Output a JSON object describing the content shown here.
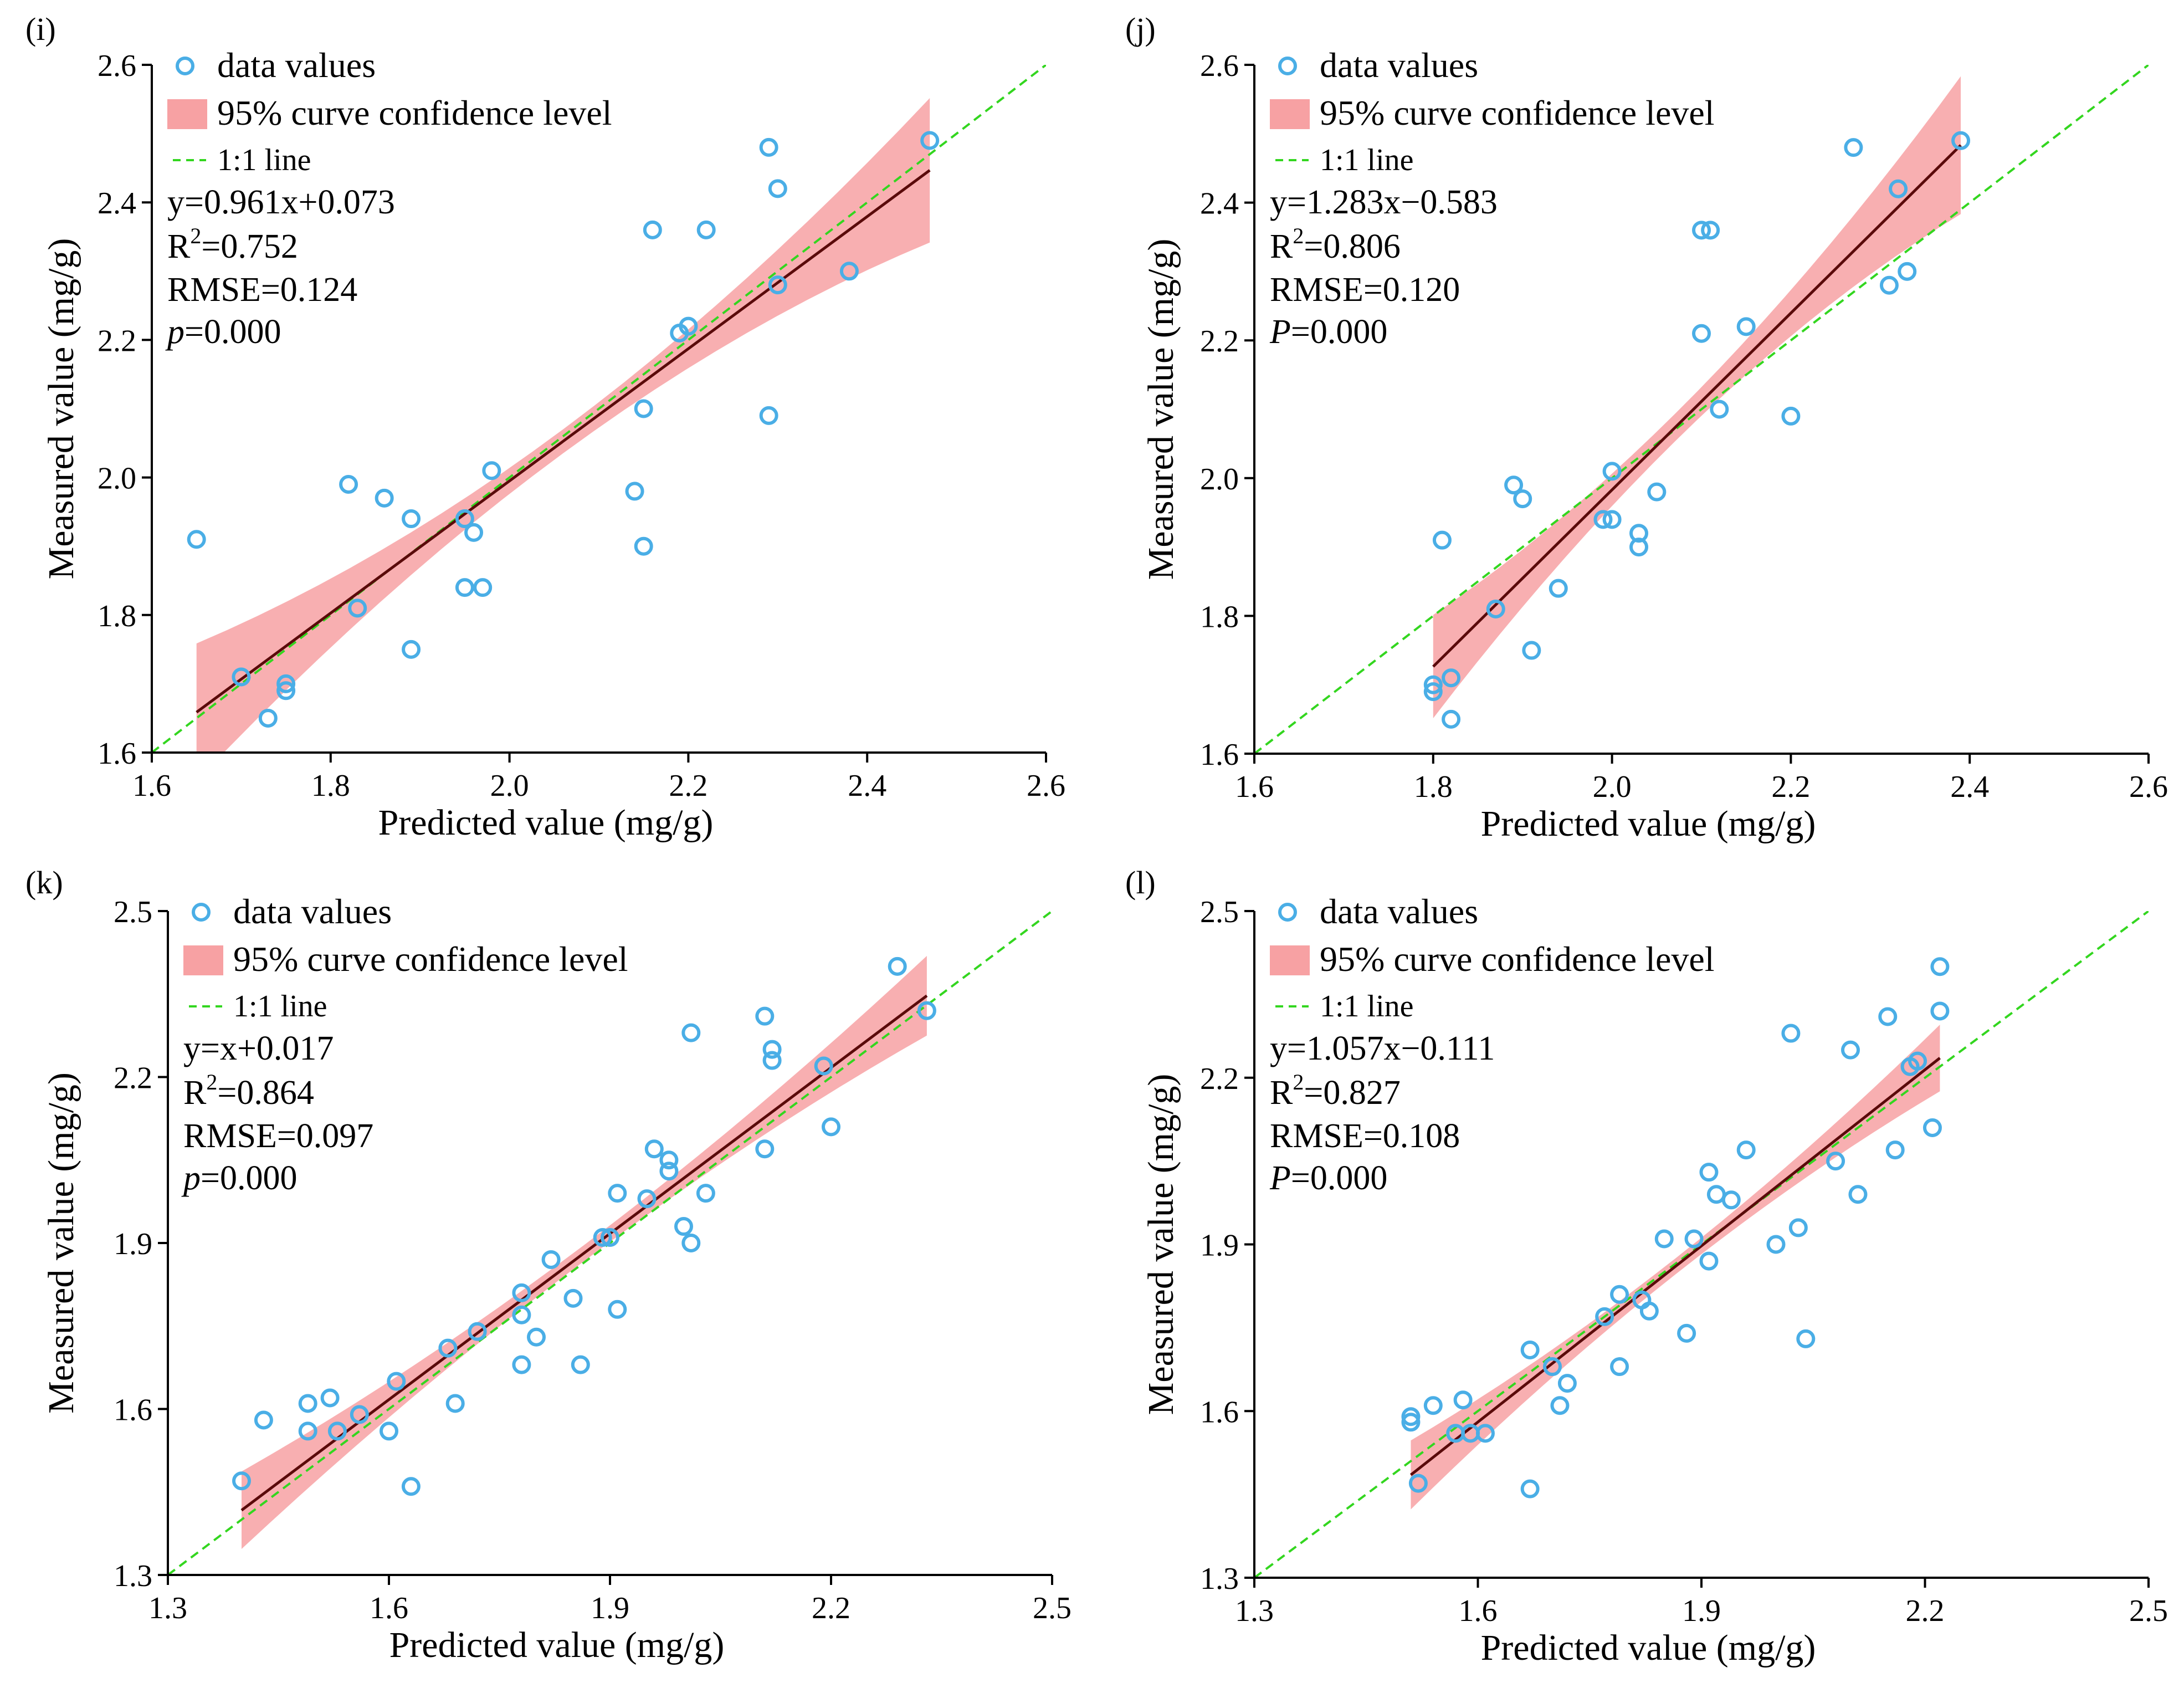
{
  "colors": {
    "points": "#4aaee6",
    "band": "#f7a1a3",
    "fit": "#5a0a0a",
    "oneone": "#33d61f",
    "axis": "#000000"
  },
  "chart_data": [
    {
      "panel": "(i)",
      "type": "scatter",
      "xlabel": "Predicted value (mg/g)",
      "ylabel": "Measured value (mg/g)",
      "xlim": [
        1.6,
        2.6
      ],
      "ylim": [
        1.6,
        2.6
      ],
      "xticks": [
        1.6,
        1.8,
        2.0,
        2.2,
        2.4,
        2.6
      ],
      "yticks": [
        1.6,
        1.8,
        2.0,
        2.2,
        2.4,
        2.6
      ],
      "xtick_labels": [
        "1.6",
        "1.8",
        "2.0",
        "2.2",
        "2.4",
        "2.6"
      ],
      "ytick_labels": [
        "1.6",
        "1.8",
        "2.0",
        "2.2",
        "2.4",
        "2.6"
      ],
      "legend": {
        "points": "data values",
        "band": "95% curve confidence level",
        "oneone": "1:1 line"
      },
      "stats": {
        "equation": "y=0.961x+0.073",
        "r2_prefix": "R",
        "r2_sup": "2",
        "r2_value": "=0.752",
        "rmse": "RMSE=0.124",
        "p_letter": "p",
        "p_value": "=0.000"
      },
      "fit": {
        "slope": 0.961,
        "intercept": 0.073,
        "x_range": [
          1.65,
          2.47
        ],
        "band_half_width": [
          0.1,
          0.018,
          0.105
        ]
      },
      "points": [
        [
          1.65,
          1.91
        ],
        [
          1.7,
          1.71
        ],
        [
          1.73,
          1.65
        ],
        [
          1.75,
          1.7
        ],
        [
          1.75,
          1.69
        ],
        [
          1.82,
          1.99
        ],
        [
          1.83,
          1.81
        ],
        [
          1.86,
          1.97
        ],
        [
          1.89,
          1.94
        ],
        [
          1.89,
          1.75
        ],
        [
          1.95,
          1.94
        ],
        [
          1.96,
          1.92
        ],
        [
          1.95,
          1.84
        ],
        [
          1.97,
          1.84
        ],
        [
          1.98,
          2.01
        ],
        [
          2.14,
          1.98
        ],
        [
          2.15,
          2.1
        ],
        [
          2.15,
          1.9
        ],
        [
          2.16,
          2.36
        ],
        [
          2.19,
          2.21
        ],
        [
          2.2,
          2.22
        ],
        [
          2.22,
          2.36
        ],
        [
          2.29,
          2.09
        ],
        [
          2.29,
          2.48
        ],
        [
          2.3,
          2.42
        ],
        [
          2.3,
          2.28
        ],
        [
          2.38,
          2.3
        ],
        [
          2.47,
          2.49
        ]
      ]
    },
    {
      "panel": "(j)",
      "type": "scatter",
      "xlabel": "Predicted value (mg/g)",
      "ylabel": "Measured value (mg/g)",
      "xlim": [
        1.6,
        2.6
      ],
      "ylim": [
        1.6,
        2.6
      ],
      "xticks": [
        1.6,
        1.8,
        2.0,
        2.2,
        2.4,
        2.6
      ],
      "yticks": [
        1.6,
        1.8,
        2.0,
        2.2,
        2.4,
        2.6
      ],
      "xtick_labels": [
        "1.6",
        "1.8",
        "2.0",
        "2.2",
        "2.4",
        "2.6"
      ],
      "ytick_labels": [
        "1.6",
        "1.8",
        "2.0",
        "2.2",
        "2.4",
        "2.6"
      ],
      "legend": {
        "points": "data values",
        "band": "95% curve confidence level",
        "oneone": "1:1 line"
      },
      "stats": {
        "equation": "y=1.283x−0.583",
        "r2_prefix": "R",
        "r2_sup": "2",
        "r2_value": "=0.806",
        "rmse": "RMSE=0.120",
        "p_letter": "P",
        "p_value": "=0.000"
      },
      "fit": {
        "slope": 1.283,
        "intercept": -0.583,
        "x_range": [
          1.8,
          2.39
        ],
        "band_half_width": [
          0.075,
          0.02,
          0.1
        ]
      },
      "points": [
        [
          1.8,
          1.7
        ],
        [
          1.8,
          1.69
        ],
        [
          1.81,
          1.91
        ],
        [
          1.82,
          1.71
        ],
        [
          1.82,
          1.65
        ],
        [
          1.87,
          1.81
        ],
        [
          1.89,
          1.99
        ],
        [
          1.9,
          1.97
        ],
        [
          1.91,
          1.75
        ],
        [
          1.94,
          1.84
        ],
        [
          1.99,
          1.94
        ],
        [
          2.0,
          2.01
        ],
        [
          2.0,
          1.94
        ],
        [
          2.03,
          1.92
        ],
        [
          2.03,
          1.9
        ],
        [
          2.05,
          1.98
        ],
        [
          2.1,
          2.36
        ],
        [
          2.11,
          2.36
        ],
        [
          2.1,
          2.21
        ],
        [
          2.12,
          2.1
        ],
        [
          2.15,
          2.22
        ],
        [
          2.2,
          2.09
        ],
        [
          2.27,
          2.48
        ],
        [
          2.31,
          2.28
        ],
        [
          2.32,
          2.42
        ],
        [
          2.33,
          2.3
        ],
        [
          2.39,
          2.49
        ]
      ]
    },
    {
      "panel": "(k)",
      "type": "scatter",
      "xlabel": "Predicted value (mg/g)",
      "ylabel": "Measured value (mg/g)",
      "xlim": [
        1.3,
        2.5
      ],
      "ylim": [
        1.3,
        2.5
      ],
      "xticks": [
        1.3,
        1.6,
        1.9,
        2.2,
        2.5
      ],
      "yticks": [
        1.3,
        1.6,
        1.9,
        2.2,
        2.5
      ],
      "xtick_labels": [
        "1.3",
        "1.6",
        "1.9",
        "2.2",
        "2.5"
      ],
      "ytick_labels": [
        "1.3",
        "1.6",
        "1.9",
        "2.2",
        "2.5"
      ],
      "legend": {
        "points": "data values",
        "band": "95% curve confidence level",
        "oneone": "1:1 line"
      },
      "stats": {
        "equation": "y=x+0.017",
        "r2_prefix": "R",
        "r2_sup": "2",
        "r2_value": "=0.864",
        "rmse": "RMSE=0.097",
        "p_letter": "p",
        "p_value": "=0.000"
      },
      "fit": {
        "slope": 1.0,
        "intercept": 0.017,
        "x_range": [
          1.4,
          2.33
        ],
        "band_half_width": [
          0.07,
          0.015,
          0.072
        ]
      },
      "points": [
        [
          1.4,
          1.47
        ],
        [
          1.43,
          1.58
        ],
        [
          1.49,
          1.61
        ],
        [
          1.49,
          1.56
        ],
        [
          1.52,
          1.62
        ],
        [
          1.53,
          1.56
        ],
        [
          1.56,
          1.59
        ],
        [
          1.6,
          1.56
        ],
        [
          1.61,
          1.65
        ],
        [
          1.63,
          1.46
        ],
        [
          1.68,
          1.71
        ],
        [
          1.69,
          1.61
        ],
        [
          1.72,
          1.74
        ],
        [
          1.78,
          1.68
        ],
        [
          1.78,
          1.81
        ],
        [
          1.78,
          1.77
        ],
        [
          1.8,
          1.73
        ],
        [
          1.82,
          1.87
        ],
        [
          1.85,
          1.8
        ],
        [
          1.86,
          1.68
        ],
        [
          1.89,
          1.91
        ],
        [
          1.9,
          1.91
        ],
        [
          1.91,
          1.78
        ],
        [
          1.91,
          1.99
        ],
        [
          1.95,
          1.98
        ],
        [
          1.96,
          2.07
        ],
        [
          1.98,
          2.05
        ],
        [
          1.98,
          2.03
        ],
        [
          2.0,
          1.93
        ],
        [
          2.01,
          1.9
        ],
        [
          2.01,
          2.28
        ],
        [
          2.03,
          1.99
        ],
        [
          2.11,
          2.31
        ],
        [
          2.11,
          2.07
        ],
        [
          2.12,
          2.25
        ],
        [
          2.12,
          2.23
        ],
        [
          2.19,
          2.22
        ],
        [
          2.2,
          2.11
        ],
        [
          2.29,
          2.4
        ],
        [
          2.33,
          2.32
        ]
      ]
    },
    {
      "panel": "(l)",
      "type": "scatter",
      "xlabel": "Predicted value (mg/g)",
      "ylabel": "Measured value (mg/g)",
      "xlim": [
        1.3,
        2.5
      ],
      "ylim": [
        1.3,
        2.5
      ],
      "xticks": [
        1.3,
        1.6,
        1.9,
        2.2,
        2.5
      ],
      "yticks": [
        1.3,
        1.6,
        1.9,
        2.2,
        2.5
      ],
      "xtick_labels": [
        "1.3",
        "1.6",
        "1.9",
        "2.2",
        "2.5"
      ],
      "ytick_labels": [
        "1.3",
        "1.6",
        "1.9",
        "2.2",
        "2.5"
      ],
      "legend": {
        "points": "data values",
        "band": "95% curve confidence level",
        "oneone": "1:1 line"
      },
      "stats": {
        "equation": "y=1.057x−0.111",
        "r2_prefix": "R",
        "r2_sup": "2",
        "r2_value": "=0.827",
        "rmse": "RMSE=0.108",
        "p_letter": "P",
        "p_value": "=0.000"
      },
      "fit": {
        "slope": 1.057,
        "intercept": -0.111,
        "x_range": [
          1.51,
          2.22
        ],
        "band_half_width": [
          0.062,
          0.015,
          0.06
        ]
      },
      "points": [
        [
          1.51,
          1.59
        ],
        [
          1.51,
          1.58
        ],
        [
          1.52,
          1.47
        ],
        [
          1.54,
          1.61
        ],
        [
          1.57,
          1.56
        ],
        [
          1.58,
          1.62
        ],
        [
          1.59,
          1.56
        ],
        [
          1.61,
          1.56
        ],
        [
          1.67,
          1.71
        ],
        [
          1.67,
          1.46
        ],
        [
          1.7,
          1.68
        ],
        [
          1.71,
          1.61
        ],
        [
          1.72,
          1.65
        ],
        [
          1.77,
          1.77
        ],
        [
          1.79,
          1.81
        ],
        [
          1.79,
          1.68
        ],
        [
          1.82,
          1.8
        ],
        [
          1.83,
          1.78
        ],
        [
          1.85,
          1.91
        ],
        [
          1.88,
          1.74
        ],
        [
          1.89,
          1.91
        ],
        [
          1.91,
          2.03
        ],
        [
          1.91,
          1.87
        ],
        [
          1.92,
          1.99
        ],
        [
          1.94,
          1.98
        ],
        [
          1.96,
          2.07
        ],
        [
          2.0,
          1.9
        ],
        [
          2.02,
          2.28
        ],
        [
          2.03,
          1.93
        ],
        [
          2.04,
          1.73
        ],
        [
          2.08,
          2.05
        ],
        [
          2.1,
          2.25
        ],
        [
          2.11,
          1.99
        ],
        [
          2.15,
          2.31
        ],
        [
          2.16,
          2.07
        ],
        [
          2.18,
          2.22
        ],
        [
          2.19,
          2.23
        ],
        [
          2.21,
          2.11
        ],
        [
          2.22,
          2.4
        ],
        [
          2.22,
          2.32
        ]
      ]
    }
  ]
}
